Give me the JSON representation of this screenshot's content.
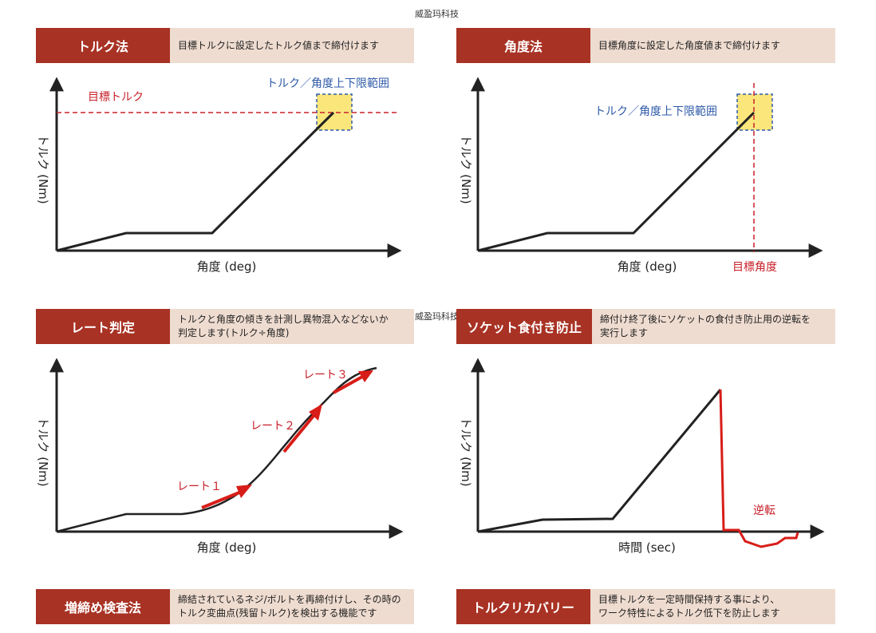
{
  "watermark": "威盈玛科技",
  "colors": {
    "accent": "#a83224",
    "desc_bg": "#efdcd0",
    "target_red": "#c8202a",
    "range_blue": "#2f5aa8",
    "range_fill": "#fbe67c"
  },
  "sections": {
    "torque_method": {
      "label": "トルク法",
      "desc": "目標トルクに設定したトルク値まで締付けます",
      "y_label": "トルク (Nm)",
      "x_label": "角度 (deg)",
      "target_label": "目標トルク",
      "range_label": "トルク／角度上下限範囲"
    },
    "angle_method": {
      "label": "角度法",
      "desc": "目標角度に設定した角度値まで締付けます",
      "y_label": "トルク (Nm)",
      "x_label": "角度 (deg)",
      "target_label": "目標角度",
      "range_label": "トルク／角度上下限範囲"
    },
    "rate_judgment": {
      "label": "レート判定",
      "desc": "トルクと角度の傾きを計測し異物混入などないか\n判定します(トルク÷角度)",
      "y_label": "トルク (Nm)",
      "x_label": "角度 (deg)",
      "rate1": "レート１",
      "rate2": "レート２",
      "rate3": "レート３"
    },
    "socket_prevention": {
      "label": "ソケット食付き防止",
      "desc": "締付け終了後にソケットの食付き防止用の逆転を\n実行します",
      "y_label": "トルク (Nm)",
      "x_label": "時間 (sec)",
      "reverse_label": "逆転"
    },
    "retighten_check": {
      "label": "増締め検査法",
      "desc": "締結されているネジ/ボルトを再締付けし、その時の\nトルク変曲点(残留トルク)を検出する機能です"
    },
    "torque_recovery": {
      "label": "トルクリカバリー",
      "desc": "目標トルクを一定時間保持する事により、\nワーク特性によるトルク低下を防止します"
    }
  }
}
